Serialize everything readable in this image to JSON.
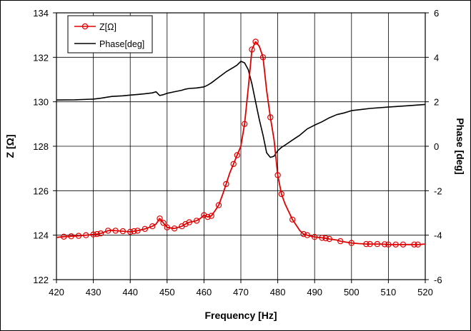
{
  "chart_data": {
    "type": "line",
    "title": "",
    "xlabel": "Frequency [Hz]",
    "ylabel": "Z [Ω]",
    "y2label": "Phase [deg]",
    "xlim": [
      420,
      520
    ],
    "ylim": [
      122,
      134
    ],
    "y2lim": [
      -6,
      6
    ],
    "grid": true,
    "legend_position": "top-left",
    "x_ticks": [
      420,
      430,
      440,
      450,
      460,
      470,
      480,
      490,
      500,
      510,
      520
    ],
    "y_ticks": [
      122,
      124,
      126,
      128,
      130,
      132,
      134
    ],
    "y2_ticks": [
      -6,
      -4,
      -2,
      0,
      2,
      4,
      6
    ],
    "series": [
      {
        "name": "Z[Ω]",
        "axis": "left",
        "color": "#e00000",
        "marker": "circle",
        "x": [
          420,
          422,
          424,
          426,
          428,
          430,
          431,
          432,
          434,
          435,
          436,
          438,
          440,
          441,
          442,
          444,
          446,
          447,
          448,
          449,
          450,
          452,
          454,
          455,
          456,
          458,
          459,
          460,
          461,
          462,
          463,
          464,
          465,
          466,
          467,
          468,
          469,
          470,
          471,
          472,
          473,
          474,
          475,
          476,
          477,
          478,
          479,
          480,
          481,
          482,
          484,
          486,
          487,
          488,
          490,
          492,
          493,
          494,
          496,
          497,
          498,
          500,
          502,
          504,
          506,
          508,
          510,
          512,
          514,
          516,
          518,
          520
        ],
        "values": [
          123.9,
          123.93,
          123.95,
          123.97,
          124.0,
          124.03,
          124.05,
          124.08,
          124.2,
          124.22,
          124.2,
          124.18,
          124.15,
          124.18,
          124.2,
          124.28,
          124.4,
          124.5,
          124.75,
          124.55,
          124.35,
          124.3,
          124.4,
          124.5,
          124.58,
          124.65,
          124.75,
          124.9,
          124.82,
          124.87,
          125.1,
          125.35,
          125.8,
          126.3,
          126.8,
          127.2,
          127.6,
          128.0,
          129.0,
          130.6,
          132.35,
          132.7,
          132.5,
          132.0,
          130.5,
          129.3,
          128.3,
          126.7,
          125.85,
          125.4,
          124.7,
          124.2,
          124.05,
          124.0,
          123.92,
          123.88,
          123.86,
          123.83,
          123.78,
          123.73,
          123.7,
          123.65,
          123.62,
          123.6,
          123.6,
          123.6,
          123.58,
          123.58,
          123.58,
          123.58,
          123.58,
          123.6
        ],
        "marker_x": [
          422,
          424,
          426,
          428,
          430,
          431,
          432,
          434,
          436,
          438,
          440,
          441,
          442,
          444,
          446,
          448,
          449,
          450,
          452,
          454,
          455,
          456,
          458,
          460,
          461,
          462,
          464,
          466,
          468,
          469,
          471,
          473,
          474,
          476,
          478,
          480,
          481,
          484,
          487,
          488,
          490,
          492,
          493,
          494,
          497,
          500,
          504,
          505,
          507,
          509,
          510,
          512,
          514,
          517,
          518
        ]
      },
      {
        "name": "Phase[deg]",
        "axis": "right",
        "color": "#000000",
        "marker": "none",
        "x": [
          420,
          425,
          430,
          432,
          435,
          438,
          440,
          442,
          444,
          446,
          447,
          448,
          449,
          450,
          452,
          454,
          455,
          456,
          458,
          460,
          461,
          462,
          464,
          466,
          468,
          469,
          470,
          471,
          472,
          473,
          474,
          475,
          476,
          477,
          478,
          479,
          480,
          481,
          482,
          484,
          486,
          488,
          490,
          492,
          494,
          496,
          498,
          500,
          505,
          510,
          515,
          520
        ],
        "values": [
          2.08,
          2.09,
          2.12,
          2.16,
          2.24,
          2.27,
          2.3,
          2.33,
          2.36,
          2.4,
          2.45,
          2.28,
          2.32,
          2.38,
          2.45,
          2.52,
          2.57,
          2.6,
          2.62,
          2.67,
          2.75,
          2.85,
          3.1,
          3.35,
          3.55,
          3.65,
          3.82,
          3.75,
          3.45,
          2.8,
          2.0,
          1.2,
          0.5,
          -0.3,
          -0.5,
          -0.45,
          -0.2,
          -0.05,
          0.05,
          0.28,
          0.5,
          0.78,
          0.95,
          1.1,
          1.28,
          1.42,
          1.5,
          1.6,
          1.7,
          1.76,
          1.82,
          1.88
        ]
      }
    ]
  }
}
